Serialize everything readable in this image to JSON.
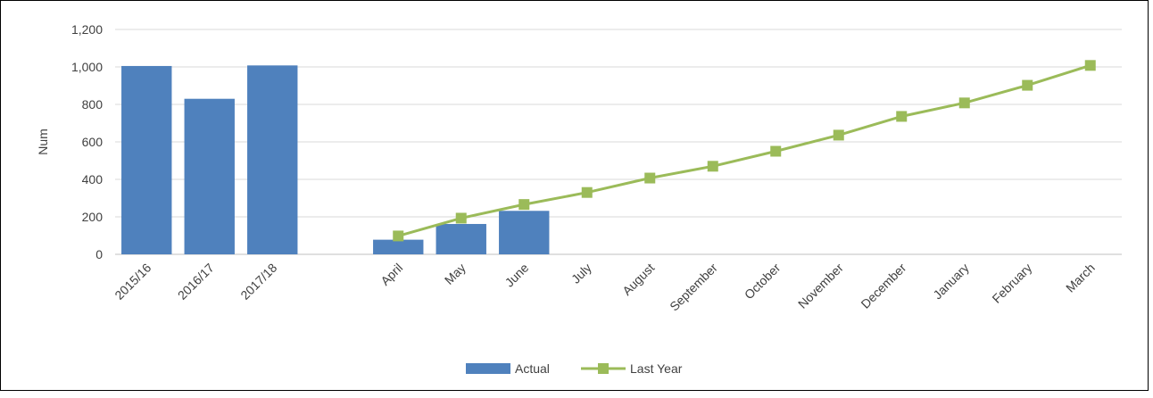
{
  "chart_data": {
    "type": "bar",
    "title": "",
    "xlabel": "",
    "ylabel": "Num",
    "ylim": [
      0,
      1200
    ],
    "yticks": [
      0,
      200,
      400,
      600,
      800,
      1000,
      1200
    ],
    "ytick_labels": [
      "0",
      "200",
      "400",
      "600",
      "800",
      "1,000",
      "1,200"
    ],
    "grid": true,
    "legend_position": "bottom",
    "categories": [
      "2015/16",
      "2016/17",
      "2017/18",
      "",
      "April",
      "May",
      "June",
      "July",
      "August",
      "September",
      "October",
      "November",
      "December",
      "January",
      "February",
      "March"
    ],
    "series": [
      {
        "name": "Actual",
        "type": "bar",
        "color": "#4F81BD",
        "values": [
          1005,
          830,
          1008,
          null,
          78,
          162,
          232,
          null,
          null,
          null,
          null,
          null,
          null,
          null,
          null,
          null
        ]
      },
      {
        "name": "Last Year",
        "type": "line",
        "color": "#9BBB59",
        "marker": "square",
        "values": [
          null,
          null,
          null,
          null,
          98,
          193,
          266,
          330,
          407,
          470,
          550,
          636,
          736,
          808,
          902,
          1008
        ]
      }
    ]
  }
}
